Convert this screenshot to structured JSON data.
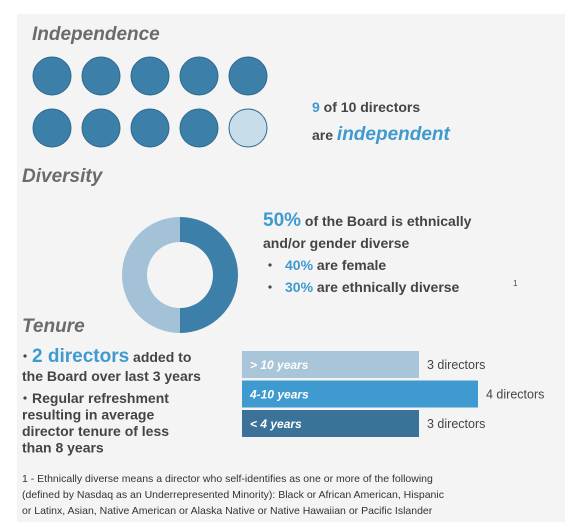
{
  "independence": {
    "title": "Independence",
    "count": 9,
    "text": " of 10 directors",
    "line2": "are ",
    "emphasis": "independent"
  },
  "diversity": {
    "title": "Diversity",
    "value": 50,
    "value_label": "50%",
    "text": " of the Board is ethnically",
    "text2": "and/or gender diverse",
    "bullets": [
      {
        "value_label": "40%",
        "text": " are female"
      },
      {
        "value_label": "30%",
        "text": " are ethnically diverse",
        "sup": "1"
      }
    ]
  },
  "tenure": {
    "title": "Tenure",
    "bullet1": {
      "highlight": "2 directors",
      "text": " added to",
      "text2": "the Board over last 3 years"
    },
    "bullet2": [
      "Regular refreshment",
      "resulting in average",
      "director tenure of less",
      "than 8 years"
    ],
    "chart_data": {
      "type": "bar",
      "categories": [
        "> 10 years",
        "4-10 years",
        "< 4 years"
      ],
      "values": [
        3,
        4,
        3
      ],
      "value_labels": [
        "3 directors",
        "4 directors",
        "3 directors"
      ],
      "colors": [
        "#a9c5da",
        "#3f9ad0",
        "#3a7397"
      ]
    }
  },
  "footnote": [
    "1 - Ethnically diverse means a director who self-identifies as one or more of the following",
    "(defined by Nasdaq as an Underrepresented Minority): Black or African American, Hispanic",
    "or Latinx, Asian, Native American or Alaska Native or Native Hawaiian or Pacific Islander"
  ]
}
